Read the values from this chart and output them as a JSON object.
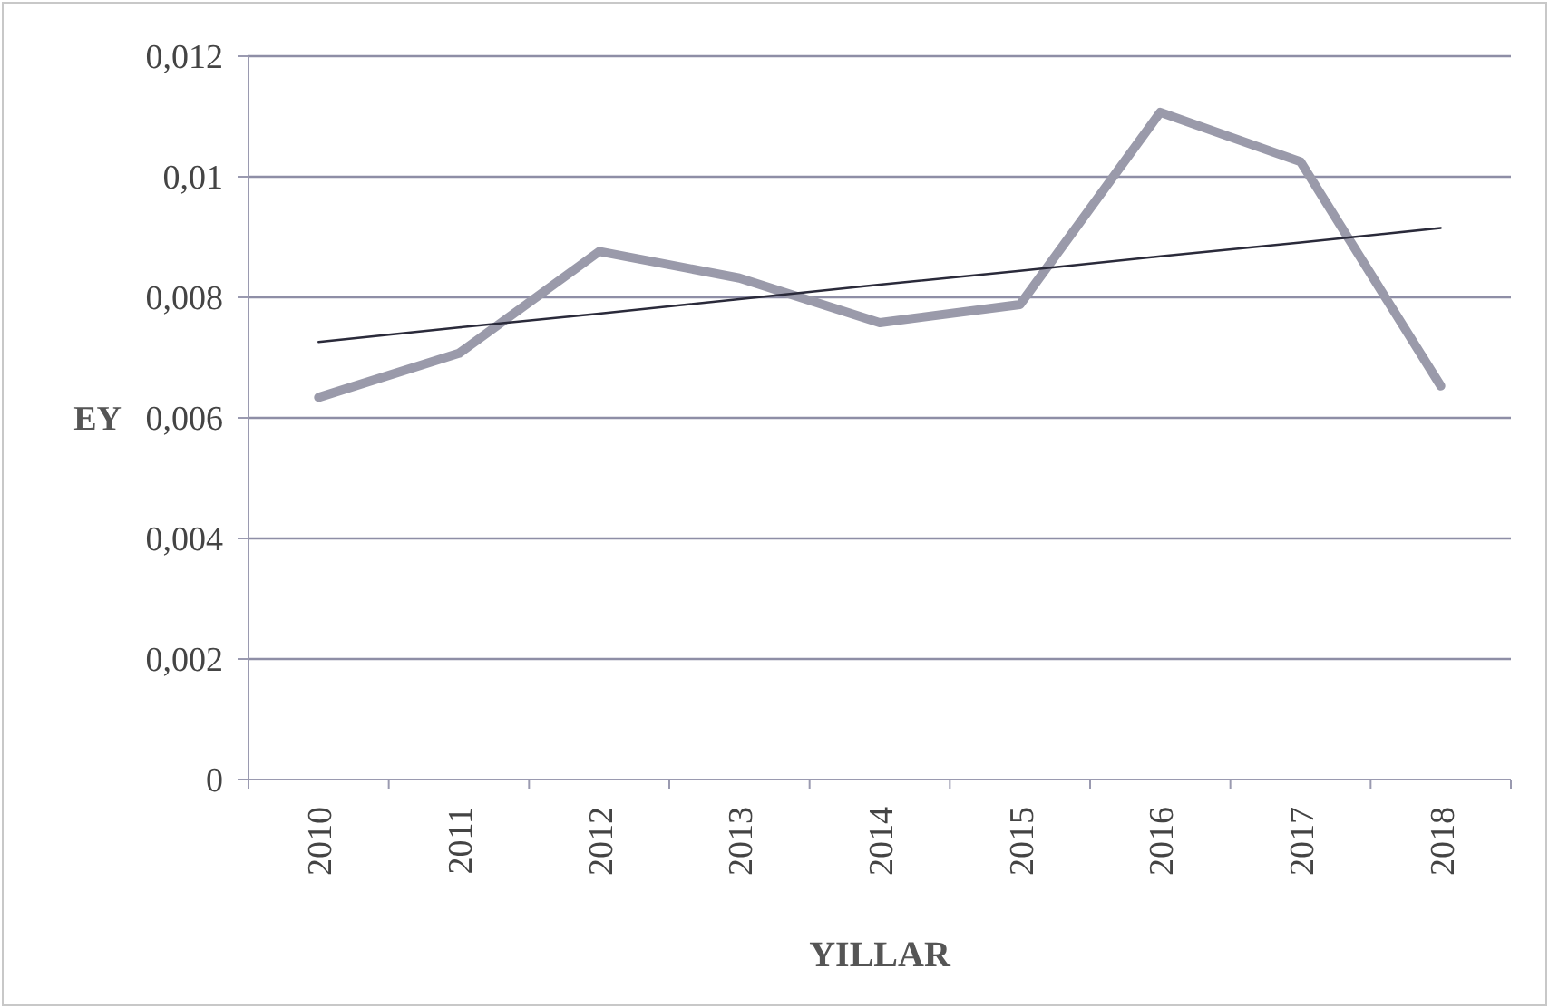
{
  "chart_data": {
    "type": "line",
    "xlabel": "YILLAR",
    "ylabel": "EY",
    "categories": [
      "2010",
      "2011",
      "2012",
      "2013",
      "2014",
      "2015",
      "2016",
      "2017",
      "2018"
    ],
    "series": [
      {
        "color": "#9a9aaa",
        "values": [
          0.00634,
          0.00707,
          0.00876,
          0.00832,
          0.00758,
          0.00788,
          0.01107,
          0.01025,
          0.00653
        ]
      },
      {
        "type": "line",
        "color": "#2a2a3a",
        "values": [
          0.00726,
          0.0075,
          0.00773,
          0.00797,
          0.00821,
          0.00844,
          0.00868,
          0.00891,
          0.00915
        ]
      }
    ],
    "ylim": [
      0,
      0.012
    ],
    "yticks": [
      {
        "value": 0,
        "label": "0"
      },
      {
        "value": 0.002,
        "label": "0,002"
      },
      {
        "value": 0.004,
        "label": "0,004"
      },
      {
        "value": 0.006,
        "label": "0,006"
      },
      {
        "value": 0.008,
        "label": "0,008"
      },
      {
        "value": 0.01,
        "label": "0,01"
      },
      {
        "value": 0.012,
        "label": "0,012"
      }
    ],
    "grid": "y",
    "marker": "none",
    "line_style": "solid"
  }
}
